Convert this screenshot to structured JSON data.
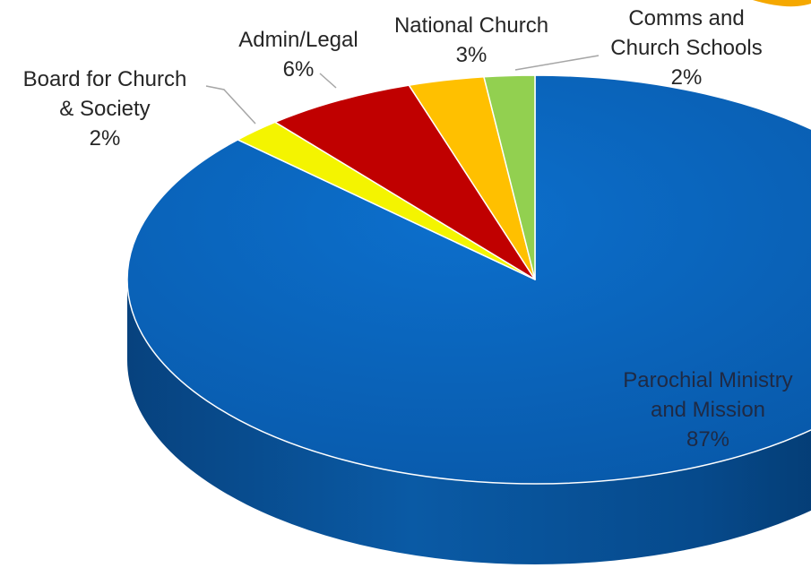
{
  "chart_data": {
    "type": "pie",
    "title": "",
    "slices": [
      {
        "label": [
          "Parochial Ministry",
          "and Mission"
        ],
        "value": 87,
        "display": "87%",
        "color": "#0a64b8"
      },
      {
        "label": [
          "Board for Church",
          "& Society"
        ],
        "value": 2,
        "display": "2%",
        "color": "#f4f400"
      },
      {
        "label": [
          "Admin/Legal"
        ],
        "value": 6,
        "display": "6%",
        "color": "#c00000"
      },
      {
        "label": [
          "National Church"
        ],
        "value": 3,
        "display": "3%",
        "color": "#ffc000"
      },
      {
        "label": [
          "Comms and",
          "Church Schools"
        ],
        "value": 2,
        "display": "2%",
        "color": "#92d050"
      }
    ],
    "legend": "none"
  }
}
